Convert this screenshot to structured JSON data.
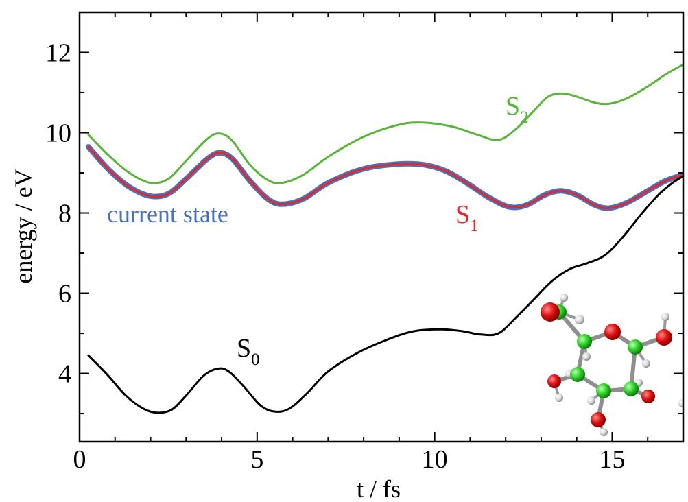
{
  "chart_data": {
    "type": "line",
    "xlabel": "t / fs",
    "ylabel": "energy / eV",
    "xlim": [
      0,
      17
    ],
    "ylim": [
      2.3,
      13
    ],
    "xticks": [
      0,
      5,
      10,
      15
    ],
    "yticks": [
      4,
      6,
      8,
      10,
      12
    ],
    "xtick_labels": [
      "0",
      "5",
      "10",
      "15"
    ],
    "ytick_labels": [
      "4",
      "6",
      "8",
      "10",
      "12"
    ],
    "grid": false,
    "colors": {
      "S0": "#000000",
      "S1": "#e8252b",
      "S2": "#5ab43a",
      "current_state": "#4a72b8"
    },
    "series": [
      {
        "id": "S2",
        "x": [
          0.25,
          0.8,
          1.4,
          2.0,
          2.5,
          3.0,
          3.6,
          3.95,
          4.3,
          4.8,
          5.3,
          5.7,
          6.3,
          7.0,
          8.0,
          9.0,
          9.7,
          10.5,
          11.2,
          11.8,
          12.3,
          12.8,
          13.2,
          13.6,
          14.0,
          14.5,
          14.9,
          15.4,
          16.0,
          16.5,
          17.0
        ],
        "y": [
          9.95,
          9.45,
          9.0,
          8.75,
          8.85,
          9.3,
          9.85,
          9.98,
          9.8,
          9.2,
          8.82,
          8.75,
          8.95,
          9.4,
          9.9,
          10.2,
          10.25,
          10.15,
          9.95,
          9.82,
          10.1,
          10.55,
          10.9,
          10.98,
          10.9,
          10.75,
          10.72,
          10.85,
          11.15,
          11.45,
          11.7
        ]
      },
      {
        "id": "S1",
        "x": [
          0.25,
          0.8,
          1.4,
          2.0,
          2.5,
          3.0,
          3.6,
          3.95,
          4.3,
          4.8,
          5.3,
          5.7,
          6.3,
          7.0,
          8.0,
          9.0,
          9.7,
          10.3,
          10.9,
          11.5,
          12.1,
          12.6,
          13.1,
          13.55,
          14.0,
          14.5,
          14.9,
          15.4,
          16.0,
          16.5,
          17.0
        ],
        "y": [
          9.65,
          9.1,
          8.65,
          8.42,
          8.48,
          8.85,
          9.35,
          9.5,
          9.35,
          8.8,
          8.35,
          8.22,
          8.35,
          8.75,
          9.1,
          9.22,
          9.2,
          9.05,
          8.75,
          8.4,
          8.15,
          8.2,
          8.45,
          8.55,
          8.45,
          8.2,
          8.12,
          8.25,
          8.55,
          8.8,
          8.95
        ]
      },
      {
        "id": "S0",
        "x": [
          0.25,
          0.8,
          1.3,
          1.8,
          2.2,
          2.6,
          3.0,
          3.5,
          3.9,
          4.2,
          4.6,
          5.1,
          5.5,
          5.9,
          6.4,
          7.0,
          7.8,
          8.6,
          9.4,
          10.2,
          10.8,
          11.3,
          11.8,
          12.3,
          12.8,
          13.3,
          13.8,
          14.3,
          14.8,
          15.3,
          15.8,
          16.3,
          16.7,
          17.0
        ],
        "y": [
          4.45,
          3.95,
          3.45,
          3.12,
          3.02,
          3.1,
          3.45,
          3.95,
          4.12,
          4.05,
          3.7,
          3.2,
          3.05,
          3.12,
          3.5,
          4.05,
          4.5,
          4.82,
          5.05,
          5.1,
          5.05,
          4.97,
          5.0,
          5.4,
          5.85,
          6.3,
          6.6,
          6.75,
          6.95,
          7.4,
          7.95,
          8.45,
          8.75,
          8.92
        ]
      }
    ],
    "labels": {
      "S2": {
        "main": "S",
        "sub": "2"
      },
      "S1": {
        "main": "S",
        "sub": "1"
      },
      "S0": {
        "main": "S",
        "sub": "0"
      },
      "current_state": "current state"
    }
  }
}
